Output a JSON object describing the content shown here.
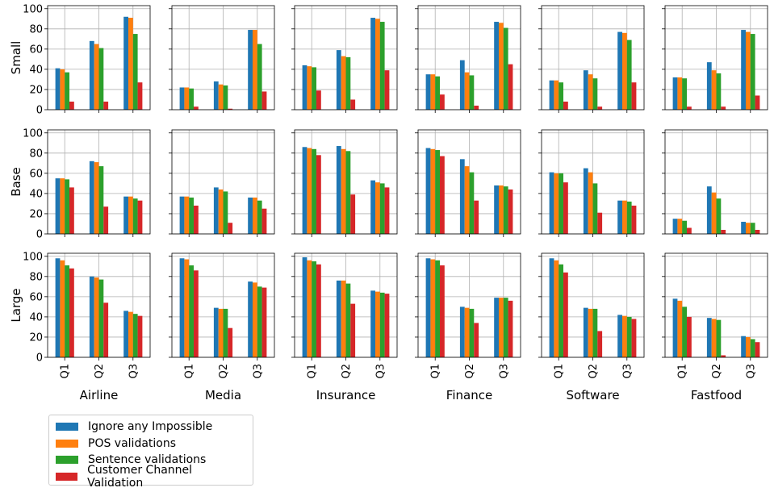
{
  "chart_data": {
    "type": "bar",
    "layout": "grid",
    "rows": [
      "Small",
      "Base",
      "Large"
    ],
    "columns": [
      "Airline",
      "Media",
      "Insurance",
      "Finance",
      "Software",
      "Fastfood"
    ],
    "categories": [
      "Q1",
      "Q2",
      "Q3"
    ],
    "ylim": [
      0,
      103
    ],
    "yticks": [
      0,
      20,
      40,
      60,
      80,
      100
    ],
    "grid": true,
    "legend_position": "bottom-left",
    "series": [
      {
        "name": "Ignore any Impossible",
        "color": "#1f77b4"
      },
      {
        "name": "POS validations",
        "color": "#ff7f0e"
      },
      {
        "name": "Sentence validations",
        "color": "#2ca02c"
      },
      {
        "name": "Customer Channel Validation",
        "color": "#d62728"
      }
    ],
    "panels": [
      {
        "row": "Small",
        "column": "Airline",
        "values": [
          [
            41,
            68,
            92
          ],
          [
            40,
            65,
            91
          ],
          [
            37,
            61,
            75
          ],
          [
            8,
            8,
            27
          ]
        ]
      },
      {
        "row": "Small",
        "column": "Media",
        "values": [
          [
            22,
            28,
            79
          ],
          [
            22,
            25,
            79
          ],
          [
            21,
            24,
            65
          ],
          [
            3,
            1,
            18
          ]
        ]
      },
      {
        "row": "Small",
        "column": "Insurance",
        "values": [
          [
            44,
            59,
            91
          ],
          [
            43,
            53,
            90
          ],
          [
            42,
            52,
            87
          ],
          [
            19,
            10,
            39
          ]
        ]
      },
      {
        "row": "Small",
        "column": "Finance",
        "values": [
          [
            35,
            49,
            87
          ],
          [
            35,
            37,
            86
          ],
          [
            33,
            34,
            81
          ],
          [
            15,
            4,
            45
          ]
        ]
      },
      {
        "row": "Small",
        "column": "Software",
        "values": [
          [
            29,
            39,
            77
          ],
          [
            29,
            35,
            76
          ],
          [
            27,
            31,
            69
          ],
          [
            8,
            3,
            27
          ]
        ]
      },
      {
        "row": "Small",
        "column": "Fastfood",
        "values": [
          [
            32,
            47,
            79
          ],
          [
            32,
            39,
            77
          ],
          [
            31,
            36,
            75
          ],
          [
            3,
            3,
            14
          ]
        ]
      },
      {
        "row": "Base",
        "column": "Airline",
        "values": [
          [
            55,
            72,
            37
          ],
          [
            55,
            71,
            37
          ],
          [
            54,
            67,
            35
          ],
          [
            46,
            27,
            33
          ]
        ]
      },
      {
        "row": "Base",
        "column": "Media",
        "values": [
          [
            37,
            46,
            36
          ],
          [
            37,
            44,
            36
          ],
          [
            36,
            42,
            33
          ],
          [
            28,
            11,
            25
          ]
        ]
      },
      {
        "row": "Base",
        "column": "Insurance",
        "values": [
          [
            86,
            87,
            53
          ],
          [
            85,
            84,
            51
          ],
          [
            84,
            82,
            50
          ],
          [
            78,
            39,
            46
          ]
        ]
      },
      {
        "row": "Base",
        "column": "Finance",
        "values": [
          [
            85,
            74,
            48
          ],
          [
            84,
            67,
            48
          ],
          [
            83,
            61,
            47
          ],
          [
            77,
            33,
            44
          ]
        ]
      },
      {
        "row": "Base",
        "column": "Software",
        "values": [
          [
            61,
            65,
            33
          ],
          [
            60,
            61,
            33
          ],
          [
            60,
            50,
            32
          ],
          [
            51,
            21,
            28
          ]
        ]
      },
      {
        "row": "Base",
        "column": "Fastfood",
        "values": [
          [
            15,
            47,
            12
          ],
          [
            15,
            41,
            11
          ],
          [
            13,
            35,
            11
          ],
          [
            6,
            4,
            4
          ]
        ]
      },
      {
        "row": "Large",
        "column": "Airline",
        "values": [
          [
            98,
            80,
            46
          ],
          [
            96,
            79,
            45
          ],
          [
            91,
            77,
            43
          ],
          [
            88,
            54,
            41
          ]
        ]
      },
      {
        "row": "Large",
        "column": "Media",
        "values": [
          [
            98,
            49,
            75
          ],
          [
            97,
            48,
            74
          ],
          [
            91,
            48,
            70
          ],
          [
            86,
            29,
            69
          ]
        ]
      },
      {
        "row": "Large",
        "column": "Insurance",
        "values": [
          [
            99,
            76,
            66
          ],
          [
            96,
            76,
            65
          ],
          [
            95,
            73,
            64
          ],
          [
            92,
            53,
            63
          ]
        ]
      },
      {
        "row": "Large",
        "column": "Finance",
        "values": [
          [
            98,
            50,
            59
          ],
          [
            97,
            49,
            59
          ],
          [
            96,
            48,
            59
          ],
          [
            91,
            34,
            56
          ]
        ]
      },
      {
        "row": "Large",
        "column": "Software",
        "values": [
          [
            98,
            49,
            42
          ],
          [
            96,
            48,
            41
          ],
          [
            92,
            48,
            40
          ],
          [
            84,
            26,
            38
          ]
        ]
      },
      {
        "row": "Large",
        "column": "Fastfood",
        "values": [
          [
            58,
            39,
            21
          ],
          [
            56,
            38,
            20
          ],
          [
            50,
            37,
            18
          ],
          [
            40,
            2,
            15
          ]
        ]
      }
    ]
  }
}
